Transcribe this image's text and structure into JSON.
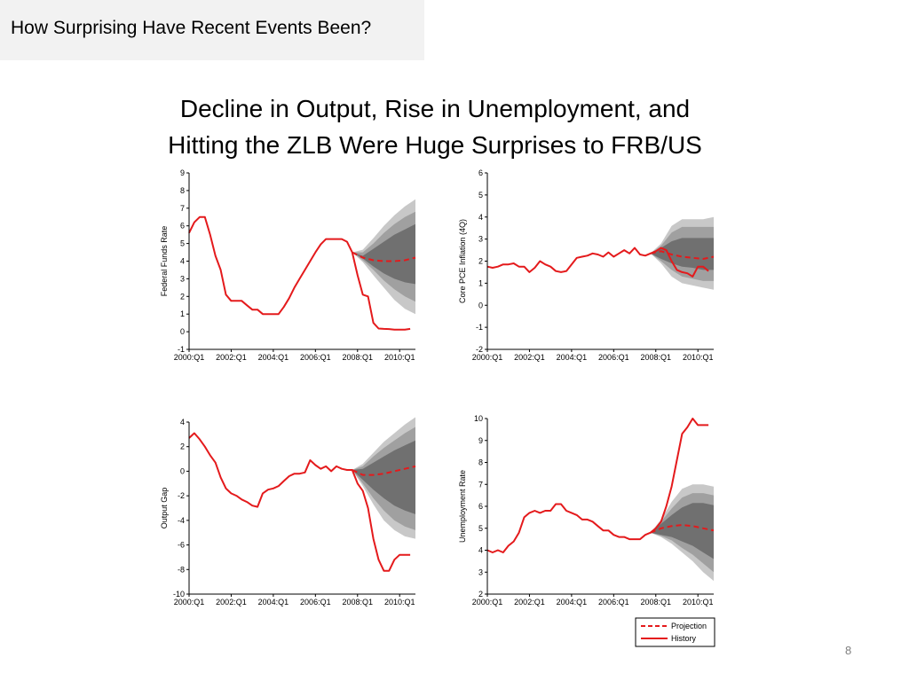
{
  "slide": {
    "section_label": "How Surprising Have Recent Events Been?",
    "title_line1": "Decline in Output, Rise in Unemployment, and",
    "title_line2": "Hitting the ZLB Were Huge Surprises to FRB/US",
    "page_number": "8"
  },
  "colors": {
    "history": "#e41a1c",
    "band_outer": "#c8c8c8",
    "band_middle": "#a0a0a0",
    "band_inner": "#707070",
    "axis": "#000000"
  },
  "legend": {
    "projection_label": "Projection",
    "history_label": "History"
  },
  "chart_data": [
    {
      "type": "line",
      "ylabel": "Federal Funds Rate",
      "ylim": [
        -1,
        9
      ],
      "yticks": [
        -1,
        0,
        1,
        2,
        3,
        4,
        5,
        6,
        7,
        8,
        9
      ],
      "xlim": [
        2000.0,
        2010.75
      ],
      "xticks": [
        2000.0,
        2002.0,
        2004.0,
        2006.0,
        2008.0,
        2010.0
      ],
      "xtick_labels": [
        "2000:Q1",
        "2002:Q1",
        "2004:Q1",
        "2006:Q1",
        "2008:Q1",
        "2010:Q1"
      ],
      "history": {
        "x": [
          2000.0,
          2000.25,
          2000.5,
          2000.75,
          2001.0,
          2001.25,
          2001.5,
          2001.75,
          2002.0,
          2002.25,
          2002.5,
          2002.75,
          2003.0,
          2003.25,
          2003.5,
          2003.75,
          2004.0,
          2004.25,
          2004.5,
          2004.75,
          2005.0,
          2005.25,
          2005.5,
          2005.75,
          2006.0,
          2006.25,
          2006.5,
          2006.75,
          2007.0,
          2007.25,
          2007.5,
          2007.75,
          2008.0,
          2008.25,
          2008.5,
          2008.75,
          2009.0,
          2009.25,
          2009.5,
          2009.75,
          2010.0,
          2010.25,
          2010.5
        ],
        "y": [
          5.6,
          6.2,
          6.5,
          6.5,
          5.5,
          4.3,
          3.5,
          2.1,
          1.75,
          1.75,
          1.75,
          1.5,
          1.25,
          1.25,
          1.0,
          1.0,
          1.0,
          1.0,
          1.4,
          1.9,
          2.5,
          3.0,
          3.5,
          4.0,
          4.5,
          4.95,
          5.25,
          5.25,
          5.25,
          5.25,
          5.1,
          4.5,
          3.2,
          2.1,
          2.0,
          0.5,
          0.18,
          0.16,
          0.15,
          0.12,
          0.12,
          0.12,
          0.16
        ]
      },
      "projection": {
        "x": [
          2007.75,
          2008.25,
          2008.75,
          2009.25,
          2009.75,
          2010.25,
          2010.75
        ],
        "y": [
          4.5,
          4.2,
          4.05,
          4.0,
          4.0,
          4.05,
          4.2
        ],
        "band_outer": [
          [
            4.5,
            4.5
          ],
          [
            3.95,
            4.65
          ],
          [
            3.2,
            5.3
          ],
          [
            2.5,
            6.0
          ],
          [
            1.8,
            6.6
          ],
          [
            1.3,
            7.1
          ],
          [
            1.0,
            7.5
          ]
        ],
        "band_middle": [
          [
            4.5,
            4.5
          ],
          [
            4.05,
            4.5
          ],
          [
            3.5,
            5.0
          ],
          [
            2.9,
            5.6
          ],
          [
            2.4,
            6.1
          ],
          [
            2.0,
            6.5
          ],
          [
            1.7,
            6.8
          ]
        ],
        "band_inner": [
          [
            4.5,
            4.5
          ],
          [
            4.15,
            4.3
          ],
          [
            3.7,
            4.7
          ],
          [
            3.3,
            5.1
          ],
          [
            3.0,
            5.5
          ],
          [
            2.8,
            5.8
          ],
          [
            2.7,
            6.1
          ]
        ]
      }
    },
    {
      "type": "line",
      "ylabel": "Core PCE Inflation (4Q)",
      "ylim": [
        -2,
        6
      ],
      "yticks": [
        -2,
        -1,
        0,
        1,
        2,
        3,
        4,
        5,
        6
      ],
      "xlim": [
        2000.0,
        2010.75
      ],
      "xticks": [
        2000.0,
        2002.0,
        2004.0,
        2006.0,
        2008.0,
        2010.0
      ],
      "xtick_labels": [
        "2000:Q1",
        "2002:Q1",
        "2004:Q1",
        "2006:Q1",
        "2008:Q1",
        "2010:Q1"
      ],
      "history": {
        "x": [
          2000.0,
          2000.25,
          2000.5,
          2000.75,
          2001.0,
          2001.25,
          2001.5,
          2001.75,
          2002.0,
          2002.25,
          2002.5,
          2002.75,
          2003.0,
          2003.25,
          2003.5,
          2003.75,
          2004.0,
          2004.25,
          2004.5,
          2004.75,
          2005.0,
          2005.25,
          2005.5,
          2005.75,
          2006.0,
          2006.25,
          2006.5,
          2006.75,
          2007.0,
          2007.25,
          2007.5,
          2007.75,
          2008.0,
          2008.25,
          2008.5,
          2008.75,
          2009.0,
          2009.25,
          2009.5,
          2009.75,
          2010.0,
          2010.25,
          2010.5
        ],
        "y": [
          1.75,
          1.7,
          1.75,
          1.85,
          1.85,
          1.9,
          1.75,
          1.75,
          1.5,
          1.7,
          2.0,
          1.85,
          1.75,
          1.55,
          1.5,
          1.55,
          1.85,
          2.15,
          2.2,
          2.25,
          2.35,
          2.3,
          2.2,
          2.4,
          2.2,
          2.35,
          2.5,
          2.35,
          2.6,
          2.3,
          2.25,
          2.35,
          2.45,
          2.6,
          2.5,
          2.0,
          1.6,
          1.5,
          1.45,
          1.3,
          1.75,
          1.75,
          1.55
        ]
      },
      "projection": {
        "x": [
          2007.75,
          2008.25,
          2008.75,
          2009.25,
          2009.75,
          2010.25,
          2010.75
        ],
        "y": [
          2.35,
          2.45,
          2.3,
          2.2,
          2.15,
          2.1,
          2.2
        ],
        "band_outer": [
          [
            2.35,
            2.35
          ],
          [
            1.9,
            2.8
          ],
          [
            1.3,
            3.6
          ],
          [
            1.0,
            3.9
          ],
          [
            0.9,
            3.9
          ],
          [
            0.8,
            3.9
          ],
          [
            0.7,
            4.0
          ]
        ],
        "band_middle": [
          [
            2.35,
            2.35
          ],
          [
            2.0,
            2.7
          ],
          [
            1.6,
            3.3
          ],
          [
            1.3,
            3.55
          ],
          [
            1.2,
            3.55
          ],
          [
            1.1,
            3.55
          ],
          [
            1.1,
            3.55
          ]
        ],
        "band_inner": [
          [
            2.35,
            2.35
          ],
          [
            2.1,
            2.6
          ],
          [
            1.9,
            2.9
          ],
          [
            1.75,
            3.05
          ],
          [
            1.7,
            3.05
          ],
          [
            1.6,
            3.05
          ],
          [
            1.6,
            3.05
          ]
        ]
      }
    },
    {
      "type": "line",
      "ylabel": "Output Gap",
      "ylim": [
        -10,
        4
      ],
      "yticks": [
        -10,
        -8,
        -6,
        -4,
        -2,
        0,
        2,
        4
      ],
      "xlim": [
        2000.0,
        2010.75
      ],
      "xticks": [
        2000.0,
        2002.0,
        2004.0,
        2006.0,
        2008.0,
        2010.0
      ],
      "xtick_labels": [
        "2000:Q1",
        "2002:Q1",
        "2004:Q1",
        "2006:Q1",
        "2008:Q1",
        "2010:Q1"
      ],
      "history": {
        "x": [
          2000.0,
          2000.25,
          2000.5,
          2000.75,
          2001.0,
          2001.25,
          2001.5,
          2001.75,
          2002.0,
          2002.25,
          2002.5,
          2002.75,
          2003.0,
          2003.25,
          2003.5,
          2003.75,
          2004.0,
          2004.25,
          2004.5,
          2004.75,
          2005.0,
          2005.25,
          2005.5,
          2005.75,
          2006.0,
          2006.25,
          2006.5,
          2006.75,
          2007.0,
          2007.25,
          2007.5,
          2007.75,
          2008.0,
          2008.25,
          2008.5,
          2008.75,
          2009.0,
          2009.25,
          2009.5,
          2009.75,
          2010.0,
          2010.25,
          2010.5
        ],
        "y": [
          2.7,
          3.1,
          2.6,
          2.0,
          1.3,
          0.7,
          -0.5,
          -1.4,
          -1.8,
          -2.0,
          -2.3,
          -2.5,
          -2.8,
          -2.9,
          -1.8,
          -1.5,
          -1.4,
          -1.2,
          -0.8,
          -0.4,
          -0.2,
          -0.2,
          -0.1,
          0.9,
          0.5,
          0.2,
          0.4,
          0.0,
          0.4,
          0.2,
          0.1,
          0.1,
          -1.0,
          -1.6,
          -3.0,
          -5.5,
          -7.2,
          -8.1,
          -8.1,
          -7.2,
          -6.8,
          -6.8,
          -6.8
        ]
      },
      "projection": {
        "x": [
          2007.75,
          2008.25,
          2008.75,
          2009.25,
          2009.75,
          2010.25,
          2010.75
        ],
        "y": [
          0.1,
          -0.3,
          -0.3,
          -0.2,
          0.0,
          0.2,
          0.4
        ],
        "band_outer": [
          [
            0.1,
            0.1
          ],
          [
            -1.2,
            0.6
          ],
          [
            -2.7,
            1.5
          ],
          [
            -4.0,
            2.4
          ],
          [
            -4.8,
            3.1
          ],
          [
            -5.3,
            3.8
          ],
          [
            -5.5,
            4.4
          ]
        ],
        "band_middle": [
          [
            0.1,
            0.1
          ],
          [
            -1.0,
            0.4
          ],
          [
            -2.2,
            1.2
          ],
          [
            -3.2,
            1.9
          ],
          [
            -4.0,
            2.5
          ],
          [
            -4.5,
            3.1
          ],
          [
            -4.8,
            3.6
          ]
        ],
        "band_inner": [
          [
            0.1,
            0.1
          ],
          [
            -0.7,
            0.2
          ],
          [
            -1.5,
            0.7
          ],
          [
            -2.2,
            1.2
          ],
          [
            -2.8,
            1.7
          ],
          [
            -3.2,
            2.1
          ],
          [
            -3.5,
            2.5
          ]
        ]
      }
    },
    {
      "type": "line",
      "ylabel": "Unemployment Rate",
      "ylim": [
        2,
        10
      ],
      "yticks": [
        2,
        3,
        4,
        5,
        6,
        7,
        8,
        9,
        10
      ],
      "xlim": [
        2000.0,
        2010.75
      ],
      "xticks": [
        2000.0,
        2002.0,
        2004.0,
        2006.0,
        2008.0,
        2010.0
      ],
      "xtick_labels": [
        "2000:Q1",
        "2002:Q1",
        "2004:Q1",
        "2006:Q1",
        "2008:Q1",
        "2010:Q1"
      ],
      "history": {
        "x": [
          2000.0,
          2000.25,
          2000.5,
          2000.75,
          2001.0,
          2001.25,
          2001.5,
          2001.75,
          2002.0,
          2002.25,
          2002.5,
          2002.75,
          2003.0,
          2003.25,
          2003.5,
          2003.75,
          2004.0,
          2004.25,
          2004.5,
          2004.75,
          2005.0,
          2005.25,
          2005.5,
          2005.75,
          2006.0,
          2006.25,
          2006.5,
          2006.75,
          2007.0,
          2007.25,
          2007.5,
          2007.75,
          2008.0,
          2008.25,
          2008.5,
          2008.75,
          2009.0,
          2009.25,
          2009.5,
          2009.75,
          2010.0,
          2010.25,
          2010.5
        ],
        "y": [
          4.0,
          3.9,
          4.0,
          3.9,
          4.2,
          4.4,
          4.8,
          5.5,
          5.7,
          5.8,
          5.7,
          5.8,
          5.8,
          6.1,
          6.1,
          5.8,
          5.7,
          5.6,
          5.4,
          5.4,
          5.3,
          5.1,
          4.9,
          4.9,
          4.7,
          4.6,
          4.6,
          4.5,
          4.5,
          4.5,
          4.7,
          4.8,
          5.0,
          5.3,
          6.0,
          6.9,
          8.1,
          9.3,
          9.6,
          10.0,
          9.7,
          9.7,
          9.7
        ]
      },
      "projection": {
        "x": [
          2007.75,
          2008.25,
          2008.75,
          2009.25,
          2009.75,
          2010.25,
          2010.75
        ],
        "y": [
          4.8,
          5.0,
          5.1,
          5.15,
          5.1,
          5.0,
          4.9
        ],
        "band_outer": [
          [
            4.8,
            4.8
          ],
          [
            4.6,
            5.4
          ],
          [
            4.3,
            6.2
          ],
          [
            3.9,
            6.8
          ],
          [
            3.5,
            7.0
          ],
          [
            3.0,
            7.0
          ],
          [
            2.6,
            6.9
          ]
        ],
        "band_middle": [
          [
            4.8,
            4.8
          ],
          [
            4.65,
            5.3
          ],
          [
            4.45,
            5.9
          ],
          [
            4.1,
            6.4
          ],
          [
            3.8,
            6.6
          ],
          [
            3.4,
            6.6
          ],
          [
            3.0,
            6.5
          ]
        ],
        "band_inner": [
          [
            4.8,
            4.8
          ],
          [
            4.7,
            5.2
          ],
          [
            4.6,
            5.6
          ],
          [
            4.4,
            5.95
          ],
          [
            4.2,
            6.15
          ],
          [
            3.9,
            6.15
          ],
          [
            3.6,
            6.05
          ]
        ]
      }
    }
  ]
}
